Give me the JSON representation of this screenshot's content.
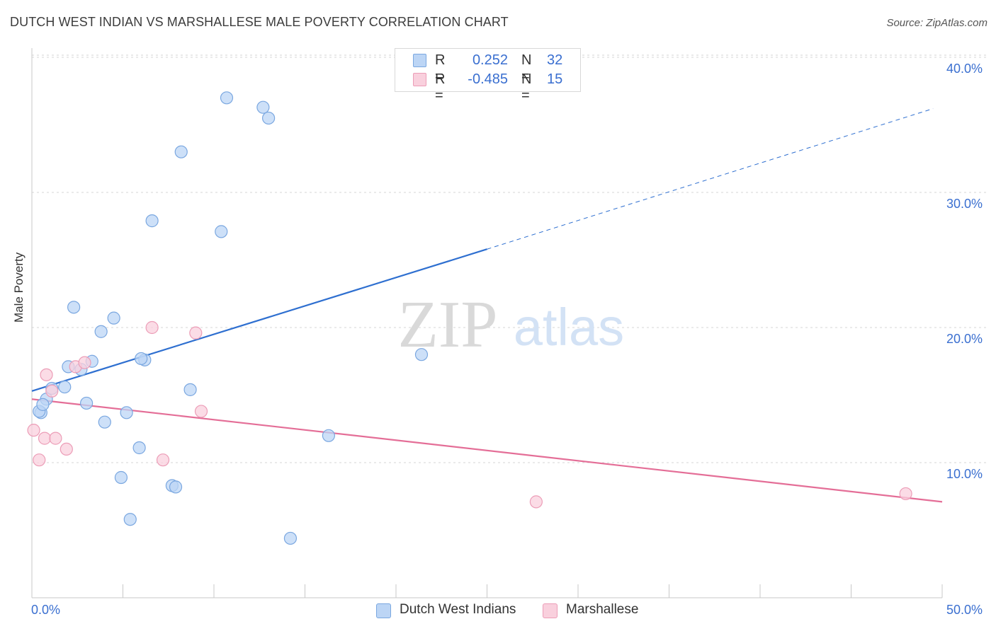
{
  "title": "DUTCH WEST INDIAN VS MARSHALLESE MALE POVERTY CORRELATION CHART",
  "source": "Source: ZipAtlas.com",
  "watermark": {
    "zip": "ZIP",
    "atlas": "atlas"
  },
  "legend_top": {
    "rows": [
      {
        "r_label": "R =",
        "r_value": "0.252",
        "n_label": "N =",
        "n_value": "32",
        "color": "#a9c8f0",
        "border": "#7aa7e0"
      },
      {
        "r_label": "R =",
        "r_value": "-0.485",
        "n_label": "N =",
        "n_value": "15",
        "color": "#f7c6d6",
        "border": "#ec9db7"
      }
    ]
  },
  "legend_bottom": [
    {
      "label": "Dutch West Indians",
      "color": "#bcd5f5",
      "border": "#7aa7e0"
    },
    {
      "label": "Marshallese",
      "color": "#f9d0dd",
      "border": "#ec9db7"
    }
  ],
  "x_axis": {
    "min_label": "0.0%",
    "max_label": "50.0%"
  },
  "y_axis": {
    "label": "Male Poverty",
    "ticks": [
      "10.0%",
      "20.0%",
      "30.0%",
      "40.0%"
    ]
  },
  "chart_data": {
    "type": "scatter",
    "title": "DUTCH WEST INDIAN VS MARSHALLESE MALE POVERTY CORRELATION CHART",
    "xlabel": "",
    "ylabel": "Male Poverty",
    "xlim": [
      0,
      50
    ],
    "ylim": [
      0,
      42
    ],
    "y_ticks": [
      10,
      20,
      30,
      40
    ],
    "grid": true,
    "legend": "bottom-center",
    "series": [
      {
        "name": "Dutch West Indians",
        "color": "#7aa7e0",
        "fill": "#bcd5f5",
        "x": [
          10.7,
          12.7,
          13.0,
          8.2,
          6.6,
          10.4,
          2.3,
          4.5,
          3.8,
          6.2,
          6.0,
          8.7,
          21.4,
          2.0,
          2.7,
          3.3,
          1.8,
          1.1,
          0.8,
          0.5,
          0.4,
          3.0,
          5.2,
          4.0,
          5.9,
          16.3,
          7.7,
          7.9,
          4.9,
          5.4,
          14.2,
          0.6
        ],
        "y": [
          37.0,
          36.3,
          35.5,
          33.0,
          27.9,
          27.1,
          21.5,
          20.7,
          19.7,
          17.6,
          17.7,
          15.4,
          18.0,
          17.1,
          16.9,
          17.5,
          15.6,
          15.5,
          14.7,
          13.7,
          13.8,
          14.4,
          13.7,
          13.0,
          11.1,
          12.0,
          8.3,
          8.2,
          8.9,
          5.8,
          4.4,
          14.3
        ]
      },
      {
        "name": "Marshallese",
        "color": "#ec9db7",
        "fill": "#f9d0dd",
        "x": [
          6.6,
          9.0,
          2.4,
          2.9,
          0.8,
          1.1,
          0.1,
          0.7,
          1.3,
          1.9,
          0.4,
          7.2,
          9.3,
          27.7,
          48.0
        ],
        "y": [
          20.0,
          19.6,
          17.1,
          17.4,
          16.5,
          15.3,
          12.4,
          11.8,
          11.8,
          11.0,
          10.2,
          10.2,
          13.8,
          7.1,
          7.7
        ]
      }
    ],
    "trendlines": [
      {
        "series": "Dutch West Indians",
        "color": "#2e6fd0",
        "x_start": 0,
        "y_start": 15.3,
        "x_end": 25,
        "y_end": 25.8,
        "dashed_to_x": 49.5,
        "dashed_to_y": 36.2
      },
      {
        "series": "Marshallese",
        "color": "#e46e97",
        "x_start": 0,
        "y_start": 14.7,
        "x_end": 50,
        "y_end": 7.1
      }
    ]
  }
}
